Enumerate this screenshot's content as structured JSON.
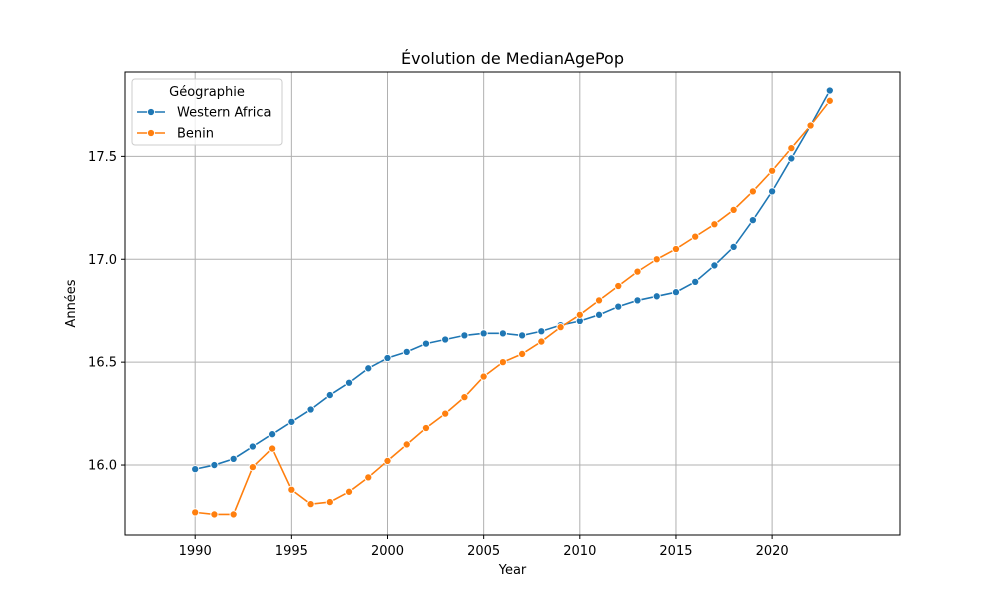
{
  "chart_data": {
    "type": "line",
    "title": "Évolution de MedianAgePop",
    "xlabel": "Year",
    "ylabel": "Années",
    "xlim": [
      1986.35,
      2026.65
    ],
    "ylim": [
      15.66,
      17.91
    ],
    "xticks": [
      1990,
      1995,
      2000,
      2005,
      2010,
      2015,
      2020
    ],
    "xtick_labels": [
      "1990",
      "1995",
      "2000",
      "2005",
      "2010",
      "2015",
      "2020"
    ],
    "yticks": [
      16.0,
      16.5,
      17.0,
      17.5
    ],
    "ytick_labels": [
      "16.0",
      "16.5",
      "17.0",
      "17.5"
    ],
    "grid": true,
    "legend": {
      "title": "Géographie",
      "placement": "top-left"
    },
    "x": [
      1990,
      1991,
      1992,
      1993,
      1994,
      1995,
      1996,
      1997,
      1998,
      1999,
      2000,
      2001,
      2002,
      2003,
      2004,
      2005,
      2006,
      2007,
      2008,
      2009,
      2010,
      2011,
      2012,
      2013,
      2014,
      2015,
      2016,
      2017,
      2018,
      2019,
      2020,
      2021,
      2022,
      2023
    ],
    "series": [
      {
        "name": "Western Africa",
        "color": "#1f77b4",
        "values": [
          15.98,
          16.0,
          16.03,
          16.09,
          16.15,
          16.21,
          16.27,
          16.34,
          16.4,
          16.47,
          16.52,
          16.55,
          16.59,
          16.61,
          16.63,
          16.64,
          16.64,
          16.63,
          16.65,
          16.68,
          16.7,
          16.73,
          16.77,
          16.8,
          16.82,
          16.84,
          16.89,
          16.97,
          17.06,
          17.19,
          17.33,
          17.49,
          17.65,
          17.82
        ]
      },
      {
        "name": "Benin",
        "color": "#ff7f0e",
        "values": [
          15.77,
          15.76,
          15.76,
          15.99,
          16.08,
          15.88,
          15.81,
          15.82,
          15.87,
          15.94,
          16.02,
          16.1,
          16.18,
          16.25,
          16.33,
          16.43,
          16.5,
          16.54,
          16.6,
          16.67,
          16.73,
          16.8,
          16.87,
          16.94,
          17.0,
          17.05,
          17.11,
          17.17,
          17.24,
          17.33,
          17.43,
          17.54,
          17.65,
          17.77
        ]
      }
    ]
  }
}
